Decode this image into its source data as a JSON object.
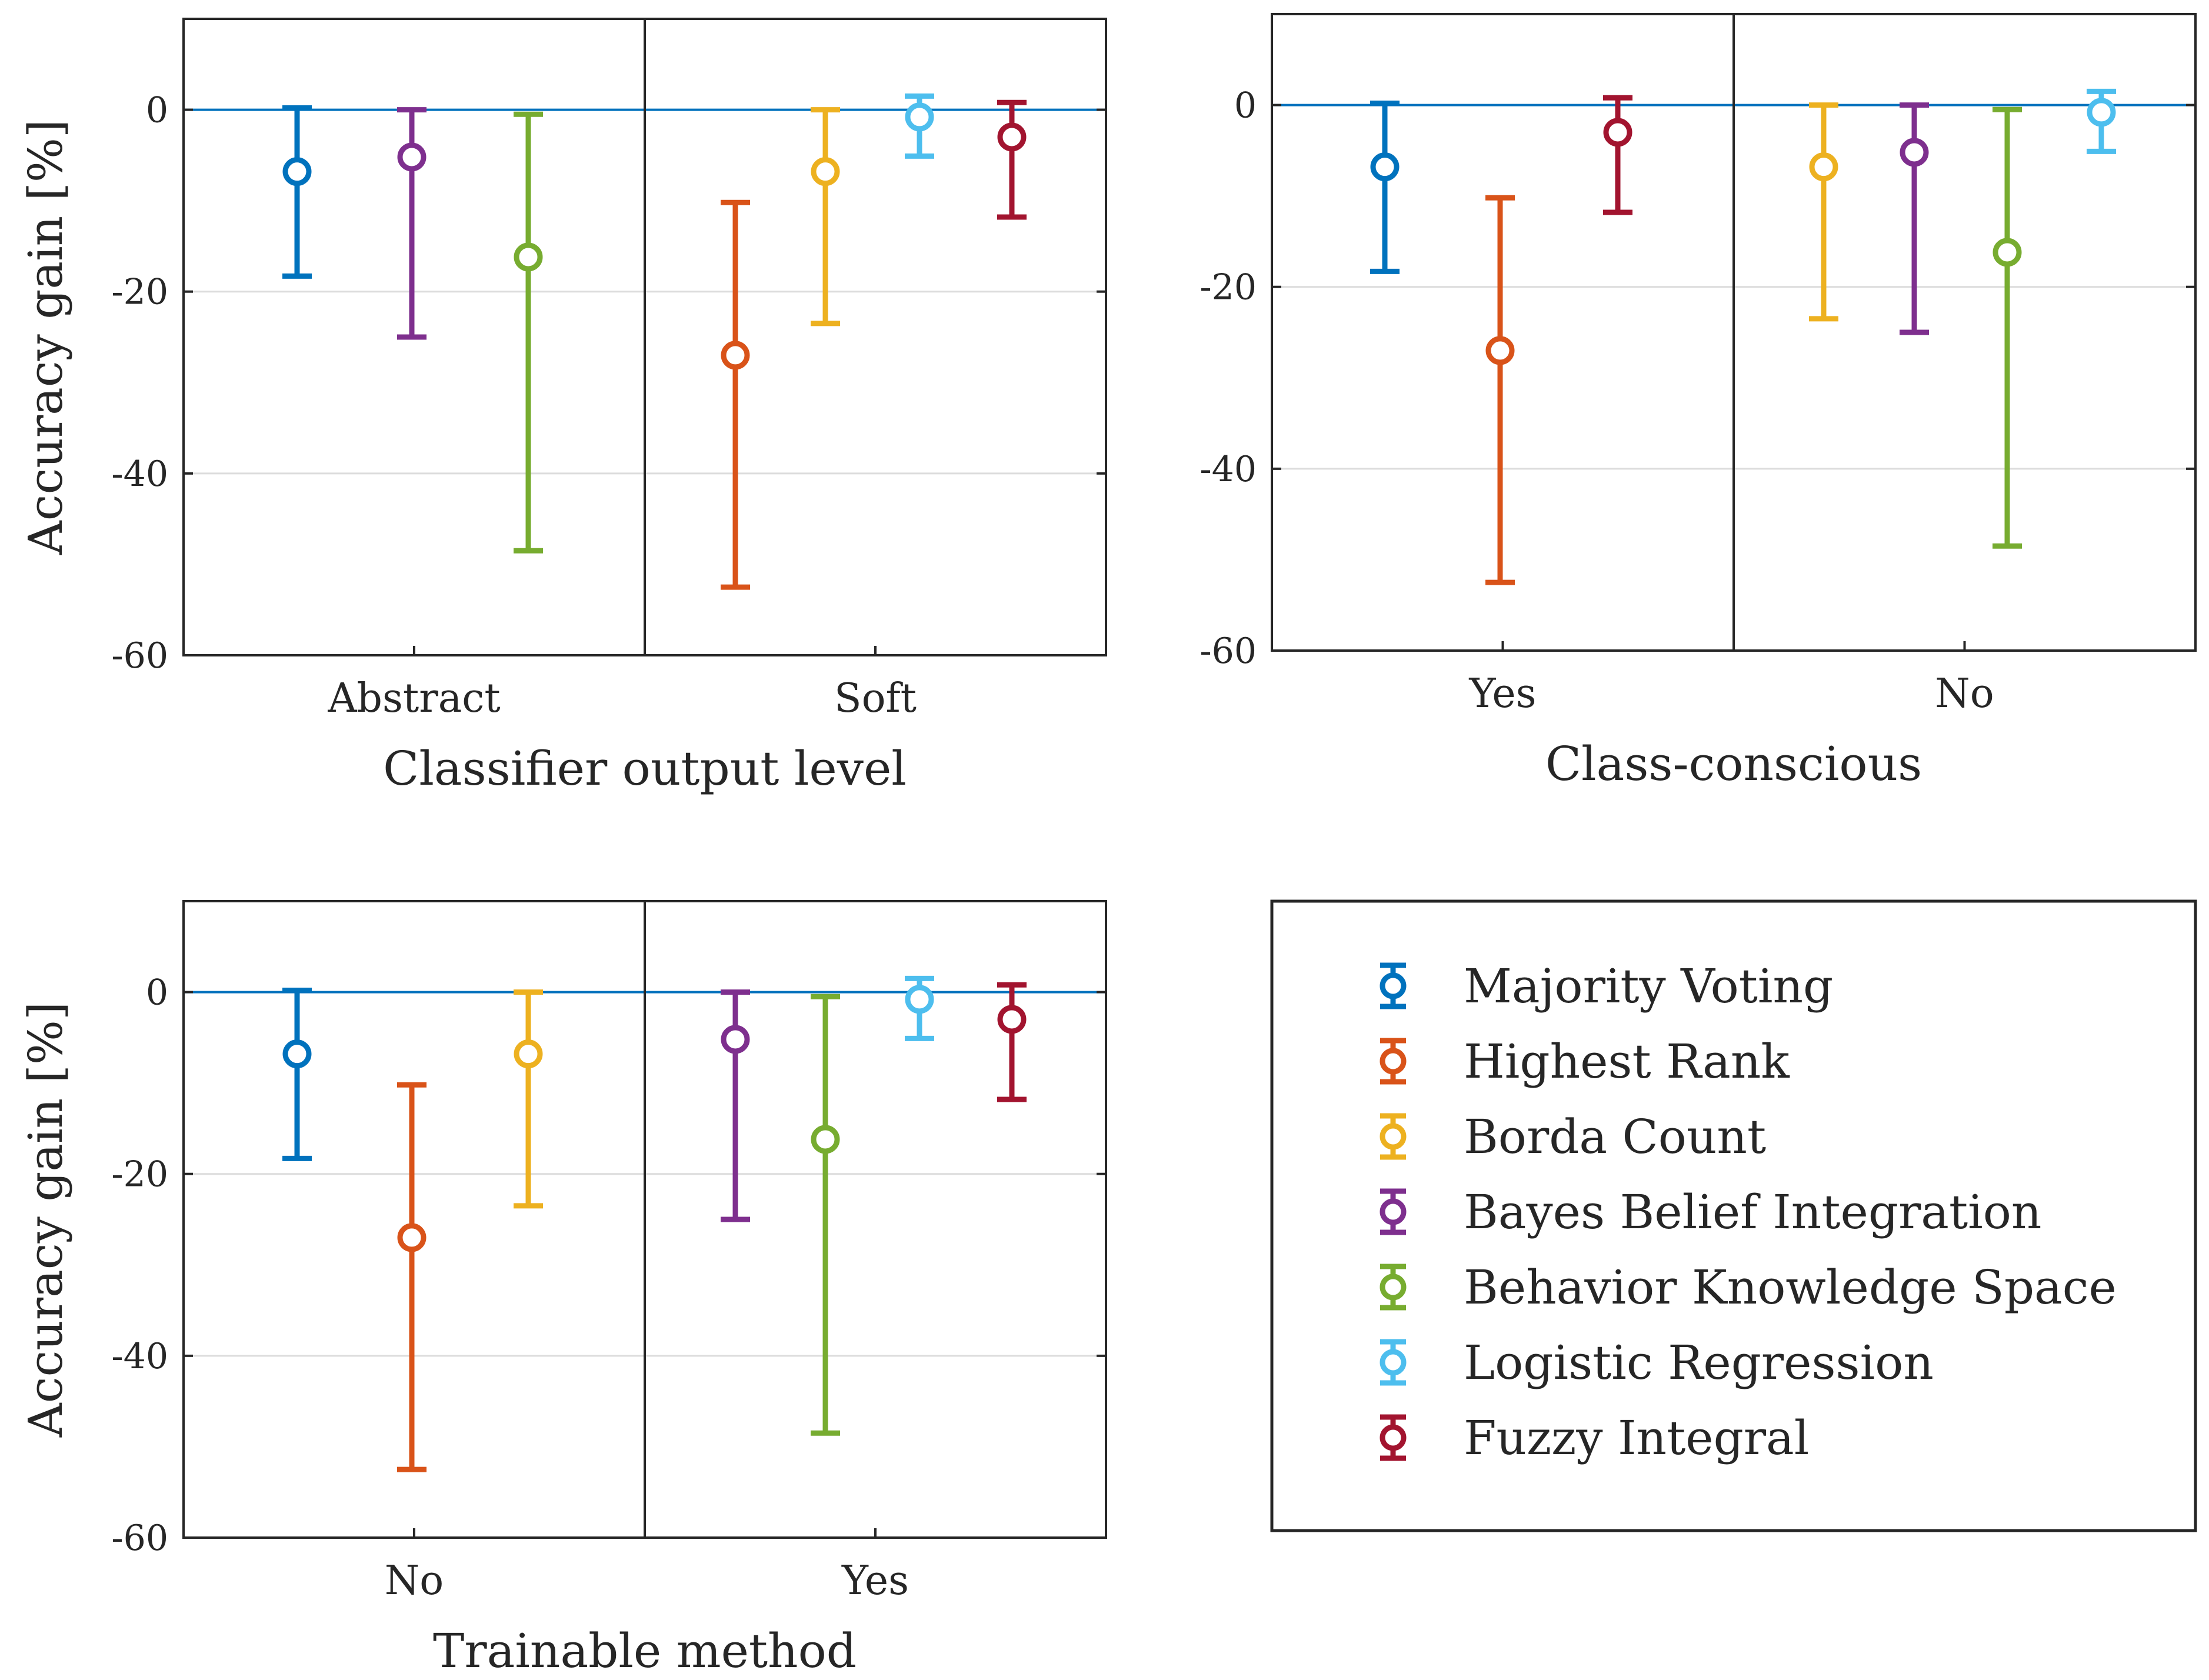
{
  "chart_data": {
    "type": "errorbar",
    "legend": {
      "placement": "bottom-right",
      "entries": [
        {
          "name": "Majority Voting",
          "color": "#0072BD"
        },
        {
          "name": "Highest Rank",
          "color": "#D95319"
        },
        {
          "name": "Borda Count",
          "color": "#EDB120"
        },
        {
          "name": "Bayes Belief Integration",
          "color": "#7E2F8E"
        },
        {
          "name": "Behavior Knowledge Space",
          "color": "#77AC30"
        },
        {
          "name": "Logistic Regression",
          "color": "#4DBEEE"
        },
        {
          "name": "Fuzzy Integral",
          "color": "#A2142F"
        }
      ]
    },
    "panels": [
      {
        "xlabel": "Classifier output level",
        "ylabel": "Accuracy gain [%]",
        "ylim": [
          -60,
          10
        ],
        "yticks": [
          0,
          -20,
          -40,
          -60
        ],
        "yticklabels": [
          "0",
          "-20",
          "-40",
          "-60"
        ],
        "zero_line": true,
        "groups": [
          {
            "label": "Abstract",
            "items": [
              {
                "method": "Majority Voting",
                "value": -6.8,
                "low": -18.3,
                "high": 0.2
              },
              {
                "method": "Bayes Belief Integration",
                "value": -5.2,
                "low": -25.0,
                "high": 0.0
              },
              {
                "method": "Behavior Knowledge Space",
                "value": -16.2,
                "low": -48.5,
                "high": -0.5
              }
            ]
          },
          {
            "label": "Soft",
            "items": [
              {
                "method": "Highest Rank",
                "value": -27.0,
                "low": -52.5,
                "high": -10.2
              },
              {
                "method": "Borda Count",
                "value": -6.8,
                "low": -23.5,
                "high": 0.0
              },
              {
                "method": "Logistic Regression",
                "value": -0.8,
                "low": -5.1,
                "high": 1.5
              },
              {
                "method": "Fuzzy Integral",
                "value": -3.0,
                "low": -11.8,
                "high": 0.8
              }
            ]
          }
        ]
      },
      {
        "xlabel": "Class-conscious",
        "ylabel": "",
        "ylim": [
          -60,
          10
        ],
        "yticks": [
          0,
          -20,
          -40,
          -60
        ],
        "yticklabels": [
          "0",
          "-20",
          "-40",
          "-60"
        ],
        "zero_line": true,
        "groups": [
          {
            "label": "Yes",
            "items": [
              {
                "method": "Majority Voting",
                "value": -6.8,
                "low": -18.3,
                "high": 0.2
              },
              {
                "method": "Highest Rank",
                "value": -27.0,
                "low": -52.5,
                "high": -10.2
              },
              {
                "method": "Fuzzy Integral",
                "value": -3.0,
                "low": -11.8,
                "high": 0.8
              }
            ]
          },
          {
            "label": "No",
            "items": [
              {
                "method": "Borda Count",
                "value": -6.8,
                "low": -23.5,
                "high": 0.0
              },
              {
                "method": "Bayes Belief Integration",
                "value": -5.2,
                "low": -25.0,
                "high": 0.0
              },
              {
                "method": "Behavior Knowledge Space",
                "value": -16.2,
                "low": -48.5,
                "high": -0.5
              },
              {
                "method": "Logistic Regression",
                "value": -0.8,
                "low": -5.1,
                "high": 1.5
              }
            ]
          }
        ]
      },
      {
        "xlabel": "Trainable method",
        "ylabel": "Accuracy gain [%]",
        "ylim": [
          -60,
          10
        ],
        "yticks": [
          0,
          -20,
          -40,
          -60
        ],
        "yticklabels": [
          "0",
          "-20",
          "-40",
          "-60"
        ],
        "zero_line": true,
        "groups": [
          {
            "label": "No",
            "items": [
              {
                "method": "Majority Voting",
                "value": -6.8,
                "low": -18.3,
                "high": 0.2
              },
              {
                "method": "Highest Rank",
                "value": -27.0,
                "low": -52.5,
                "high": -10.2
              },
              {
                "method": "Borda Count",
                "value": -6.8,
                "low": -23.5,
                "high": 0.0
              }
            ]
          },
          {
            "label": "Yes",
            "items": [
              {
                "method": "Bayes Belief Integration",
                "value": -5.2,
                "low": -25.0,
                "high": 0.0
              },
              {
                "method": "Behavior Knowledge Space",
                "value": -16.2,
                "low": -48.5,
                "high": -0.5
              },
              {
                "method": "Logistic Regression",
                "value": -0.8,
                "low": -5.1,
                "high": 1.5
              },
              {
                "method": "Fuzzy Integral",
                "value": -3.0,
                "low": -11.8,
                "high": 0.8
              }
            ]
          }
        ]
      }
    ]
  }
}
